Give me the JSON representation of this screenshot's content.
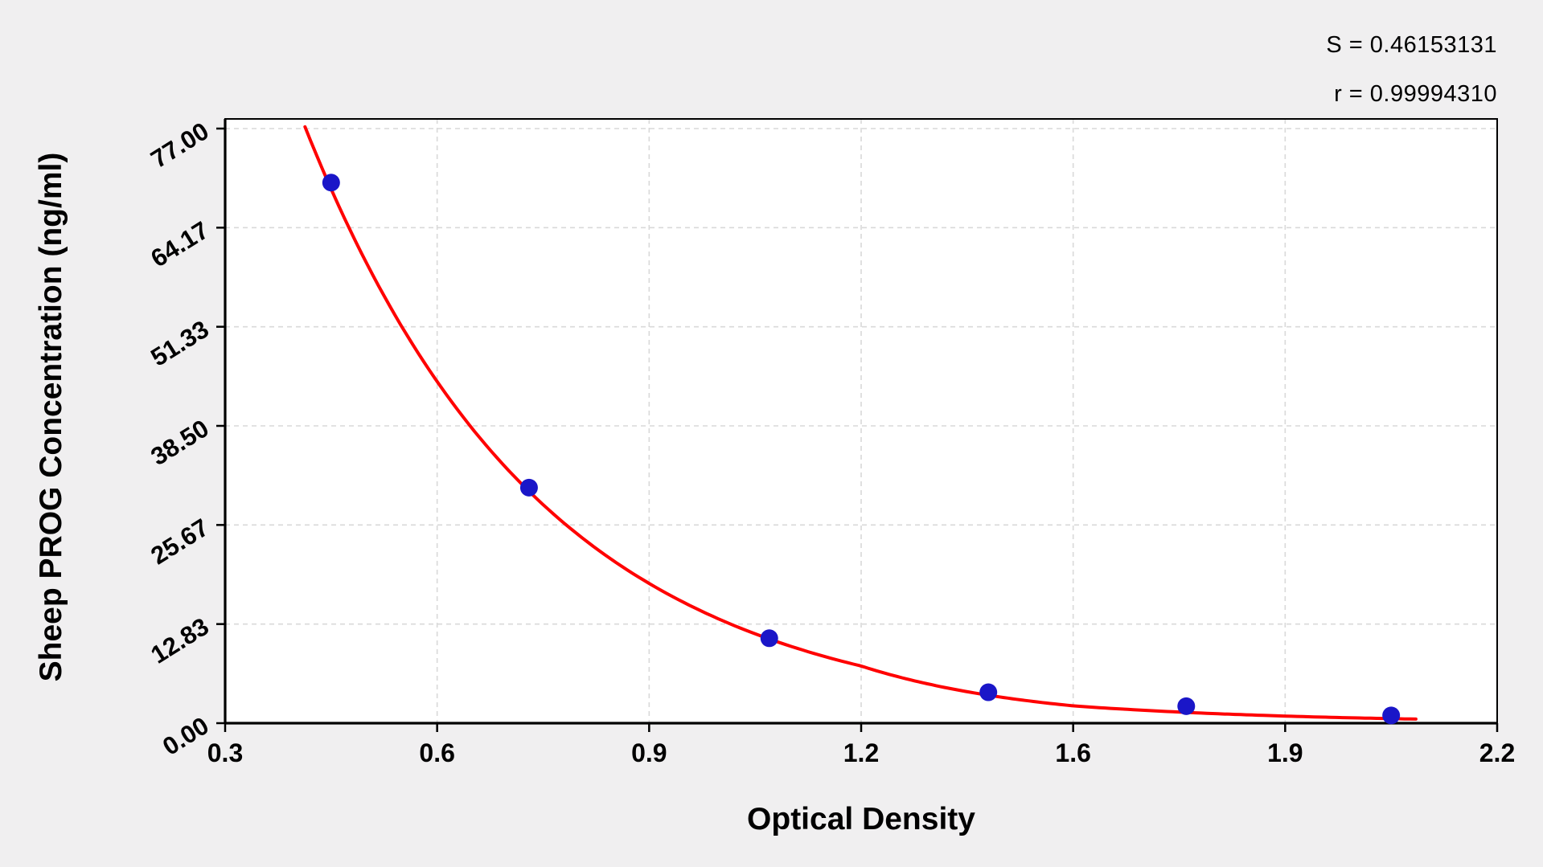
{
  "chart_data": {
    "type": "scatter",
    "title": "",
    "xlabel": "Optical Density",
    "ylabel": "Sheep PROG Concentration (ng/ml)",
    "x_tick_labels": [
      "0.3",
      "0.6",
      "0.9",
      "1.2",
      "1.6",
      "1.9",
      "2.2"
    ],
    "y_tick_labels": [
      "0.00",
      "12.83",
      "25.67",
      "38.50",
      "51.33",
      "64.17",
      "77.00"
    ],
    "ylim": [
      0,
      77
    ],
    "grid": true,
    "legend": false,
    "points": [
      {
        "x": 0.45,
        "y": 70.0
      },
      {
        "x": 0.73,
        "y": 30.5
      },
      {
        "x": 1.07,
        "y": 11.0
      },
      {
        "x": 1.44,
        "y": 4.0
      },
      {
        "x": 1.76,
        "y": 2.2
      },
      {
        "x": 2.05,
        "y": 1.0
      }
    ],
    "curve": {
      "type": "exponential_decay",
      "C0": 70,
      "k": 2.98,
      "x0": 0.446,
      "x_start": 0.413,
      "x_end": 2.09
    },
    "annotations": {
      "s_label": "S = 0.46153131",
      "r_label": "r = 0.99994310"
    },
    "colors": {
      "curve": "#ff0000",
      "points": "#1a16c8",
      "grid": "#d9d9d9",
      "axis": "#000000",
      "plot_bg": "#ffffff",
      "page_bg": "#f0eff0",
      "text": "#000000"
    }
  }
}
